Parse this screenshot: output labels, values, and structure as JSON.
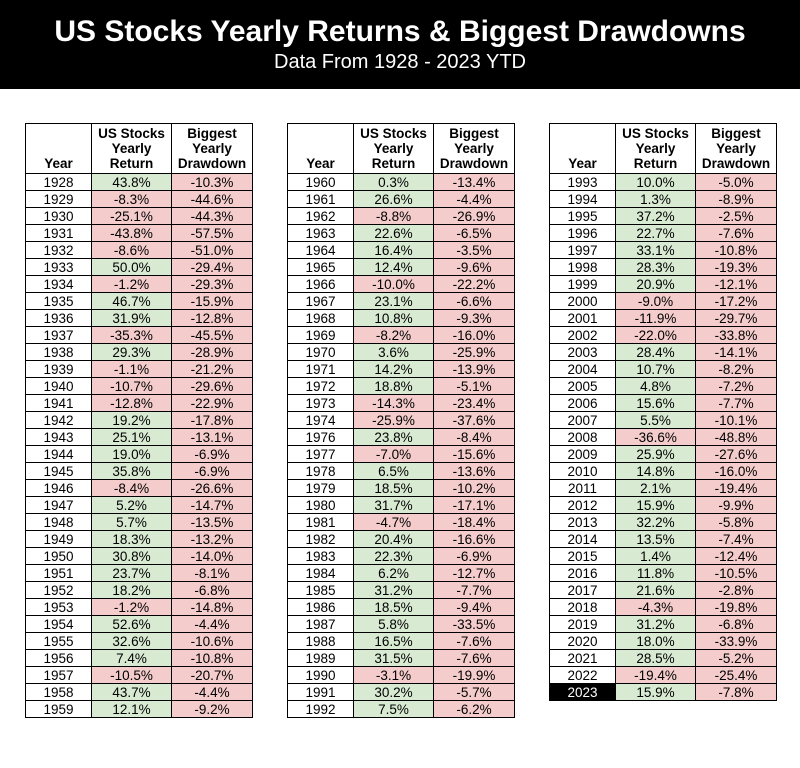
{
  "title_bar": {
    "title": "US Stocks Yearly Returns & Biggest Drawdowns",
    "subtitle": "Data From 1928 - 2023 YTD"
  },
  "colors": {
    "page_bg": "#ffffff",
    "header_bg": "#000000",
    "header_text": "#ffffff",
    "text": "#000000",
    "cell_border": "#000000",
    "positive_bg": "#d9ead3",
    "negative_bg": "#f4cccc",
    "highlight_bg": "#000000",
    "highlight_text": "#ffffff"
  },
  "chart_data": {
    "type": "table",
    "title": "US Stocks Yearly Returns & Biggest Drawdowns",
    "subtitle": "Data From 1928 - 2023 YTD",
    "columns": [
      "Year",
      "US Stocks Yearly Return",
      "Biggest Yearly Drawdown"
    ],
    "highlighted_years": [
      "2023"
    ],
    "tables": [
      {
        "rows": [
          [
            "1928",
            "43.8%",
            "-10.3%"
          ],
          [
            "1929",
            "-8.3%",
            "-44.6%"
          ],
          [
            "1930",
            "-25.1%",
            "-44.3%"
          ],
          [
            "1931",
            "-43.8%",
            "-57.5%"
          ],
          [
            "1932",
            "-8.6%",
            "-51.0%"
          ],
          [
            "1933",
            "50.0%",
            "-29.4%"
          ],
          [
            "1934",
            "-1.2%",
            "-29.3%"
          ],
          [
            "1935",
            "46.7%",
            "-15.9%"
          ],
          [
            "1936",
            "31.9%",
            "-12.8%"
          ],
          [
            "1937",
            "-35.3%",
            "-45.5%"
          ],
          [
            "1938",
            "29.3%",
            "-28.9%"
          ],
          [
            "1939",
            "-1.1%",
            "-21.2%"
          ],
          [
            "1940",
            "-10.7%",
            "-29.6%"
          ],
          [
            "1941",
            "-12.8%",
            "-22.9%"
          ],
          [
            "1942",
            "19.2%",
            "-17.8%"
          ],
          [
            "1943",
            "25.1%",
            "-13.1%"
          ],
          [
            "1944",
            "19.0%",
            "-6.9%"
          ],
          [
            "1945",
            "35.8%",
            "-6.9%"
          ],
          [
            "1946",
            "-8.4%",
            "-26.6%"
          ],
          [
            "1947",
            "5.2%",
            "-14.7%"
          ],
          [
            "1948",
            "5.7%",
            "-13.5%"
          ],
          [
            "1949",
            "18.3%",
            "-13.2%"
          ],
          [
            "1950",
            "30.8%",
            "-14.0%"
          ],
          [
            "1951",
            "23.7%",
            "-8.1%"
          ],
          [
            "1952",
            "18.2%",
            "-6.8%"
          ],
          [
            "1953",
            "-1.2%",
            "-14.8%"
          ],
          [
            "1954",
            "52.6%",
            "-4.4%"
          ],
          [
            "1955",
            "32.6%",
            "-10.6%"
          ],
          [
            "1956",
            "7.4%",
            "-10.8%"
          ],
          [
            "1957",
            "-10.5%",
            "-20.7%"
          ],
          [
            "1958",
            "43.7%",
            "-4.4%"
          ],
          [
            "1959",
            "12.1%",
            "-9.2%"
          ]
        ]
      },
      {
        "rows": [
          [
            "1960",
            "0.3%",
            "-13.4%"
          ],
          [
            "1961",
            "26.6%",
            "-4.4%"
          ],
          [
            "1962",
            "-8.8%",
            "-26.9%"
          ],
          [
            "1963",
            "22.6%",
            "-6.5%"
          ],
          [
            "1964",
            "16.4%",
            "-3.5%"
          ],
          [
            "1965",
            "12.4%",
            "-9.6%"
          ],
          [
            "1966",
            "-10.0%",
            "-22.2%"
          ],
          [
            "1967",
            "23.1%",
            "-6.6%"
          ],
          [
            "1968",
            "10.8%",
            "-9.3%"
          ],
          [
            "1969",
            "-8.2%",
            "-16.0%"
          ],
          [
            "1970",
            "3.6%",
            "-25.9%"
          ],
          [
            "1971",
            "14.2%",
            "-13.9%"
          ],
          [
            "1972",
            "18.8%",
            "-5.1%"
          ],
          [
            "1973",
            "-14.3%",
            "-23.4%"
          ],
          [
            "1974",
            "-25.9%",
            "-37.6%"
          ],
          [
            "1976",
            "23.8%",
            "-8.4%"
          ],
          [
            "1977",
            "-7.0%",
            "-15.6%"
          ],
          [
            "1978",
            "6.5%",
            "-13.6%"
          ],
          [
            "1979",
            "18.5%",
            "-10.2%"
          ],
          [
            "1980",
            "31.7%",
            "-17.1%"
          ],
          [
            "1981",
            "-4.7%",
            "-18.4%"
          ],
          [
            "1982",
            "20.4%",
            "-16.6%"
          ],
          [
            "1983",
            "22.3%",
            "-6.9%"
          ],
          [
            "1984",
            "6.2%",
            "-12.7%"
          ],
          [
            "1985",
            "31.2%",
            "-7.7%"
          ],
          [
            "1986",
            "18.5%",
            "-9.4%"
          ],
          [
            "1987",
            "5.8%",
            "-33.5%"
          ],
          [
            "1988",
            "16.5%",
            "-7.6%"
          ],
          [
            "1989",
            "31.5%",
            "-7.6%"
          ],
          [
            "1990",
            "-3.1%",
            "-19.9%"
          ],
          [
            "1991",
            "30.2%",
            "-5.7%"
          ],
          [
            "1992",
            "7.5%",
            "-6.2%"
          ]
        ]
      },
      {
        "rows": [
          [
            "1993",
            "10.0%",
            "-5.0%"
          ],
          [
            "1994",
            "1.3%",
            "-8.9%"
          ],
          [
            "1995",
            "37.2%",
            "-2.5%"
          ],
          [
            "1996",
            "22.7%",
            "-7.6%"
          ],
          [
            "1997",
            "33.1%",
            "-10.8%"
          ],
          [
            "1998",
            "28.3%",
            "-19.3%"
          ],
          [
            "1999",
            "20.9%",
            "-12.1%"
          ],
          [
            "2000",
            "-9.0%",
            "-17.2%"
          ],
          [
            "2001",
            "-11.9%",
            "-29.7%"
          ],
          [
            "2002",
            "-22.0%",
            "-33.8%"
          ],
          [
            "2003",
            "28.4%",
            "-14.1%"
          ],
          [
            "2004",
            "10.7%",
            "-8.2%"
          ],
          [
            "2005",
            "4.8%",
            "-7.2%"
          ],
          [
            "2006",
            "15.6%",
            "-7.7%"
          ],
          [
            "2007",
            "5.5%",
            "-10.1%"
          ],
          [
            "2008",
            "-36.6%",
            "-48.8%"
          ],
          [
            "2009",
            "25.9%",
            "-27.6%"
          ],
          [
            "2010",
            "14.8%",
            "-16.0%"
          ],
          [
            "2011",
            "2.1%",
            "-19.4%"
          ],
          [
            "2012",
            "15.9%",
            "-9.9%"
          ],
          [
            "2013",
            "32.2%",
            "-5.8%"
          ],
          [
            "2014",
            "13.5%",
            "-7.4%"
          ],
          [
            "2015",
            "1.4%",
            "-12.4%"
          ],
          [
            "2016",
            "11.8%",
            "-10.5%"
          ],
          [
            "2017",
            "21.6%",
            "-2.8%"
          ],
          [
            "2018",
            "-4.3%",
            "-19.8%"
          ],
          [
            "2019",
            "31.2%",
            "-6.8%"
          ],
          [
            "2020",
            "18.0%",
            "-33.9%"
          ],
          [
            "2021",
            "28.5%",
            "-5.2%"
          ],
          [
            "2022",
            "-19.4%",
            "-25.4%"
          ],
          [
            "2023",
            "15.9%",
            "-7.8%"
          ]
        ]
      }
    ]
  }
}
